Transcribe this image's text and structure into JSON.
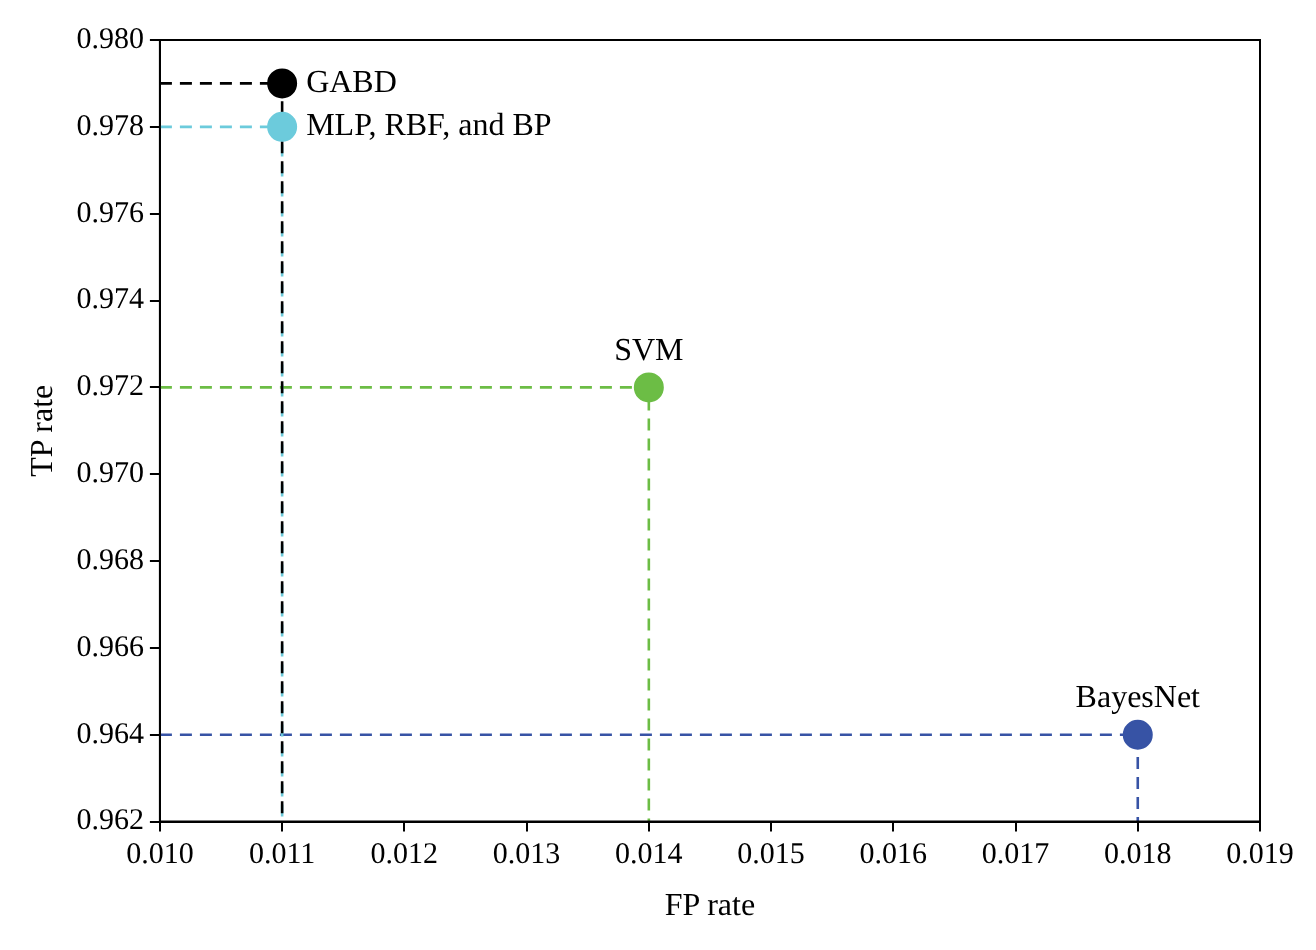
{
  "chart_data": {
    "type": "scatter",
    "xlabel": "FP rate",
    "ylabel": "TP rate",
    "xlim": [
      0.01,
      0.019
    ],
    "ylim": [
      0.962,
      0.98
    ],
    "xticks": [
      {
        "value": 0.01,
        "label": "0.010"
      },
      0.011,
      0.012,
      0.013,
      0.014,
      0.015,
      0.016,
      0.017,
      0.018,
      0.019
    ],
    "yticks": [
      0.962,
      0.964,
      0.966,
      0.968,
      {
        "value": 0.97,
        "label": "0.970"
      },
      0.972,
      0.974,
      0.976,
      0.978,
      {
        "value": 0.98,
        "label": "0.980"
      }
    ],
    "grid": false,
    "legend": false,
    "marker": "circle",
    "series": [
      {
        "type": "line",
        "line_style": "dashed",
        "marker": "none",
        "color": "#000000",
        "x": [
          0.01,
          0.011,
          0.011
        ],
        "values": [
          0.979,
          0.979,
          0.962
        ]
      },
      {
        "type": "line",
        "line_style": "dashed",
        "marker": "none",
        "color": "#6ccbdc",
        "x": [
          0.01,
          0.011,
          0.011
        ],
        "values": [
          0.978,
          0.978,
          0.962
        ]
      },
      {
        "type": "line",
        "line_style": "dashed",
        "marker": "none",
        "color": "#6cbd45",
        "x": [
          0.01,
          0.014,
          0.014
        ],
        "values": [
          0.972,
          0.972,
          0.962
        ]
      },
      {
        "type": "line",
        "line_style": "dashed",
        "marker": "none",
        "color": "#3753a5",
        "x": [
          0.01,
          0.018,
          0.018
        ],
        "values": [
          0.964,
          0.964,
          0.962
        ]
      },
      {
        "name": "GABD",
        "color": "#000000",
        "x": [
          0.011
        ],
        "values": [
          0.979
        ]
      },
      {
        "name": "MLP, RBF, and BP",
        "color": "#6ccbdc",
        "x": [
          0.011
        ],
        "values": [
          0.978
        ]
      },
      {
        "name": "SVM",
        "color": "#6cbd45",
        "x": [
          0.014
        ],
        "values": [
          0.972
        ]
      },
      {
        "name": "BayesNet",
        "color": "#3753a5",
        "x": [
          0.018
        ],
        "values": [
          0.964
        ]
      }
    ]
  }
}
